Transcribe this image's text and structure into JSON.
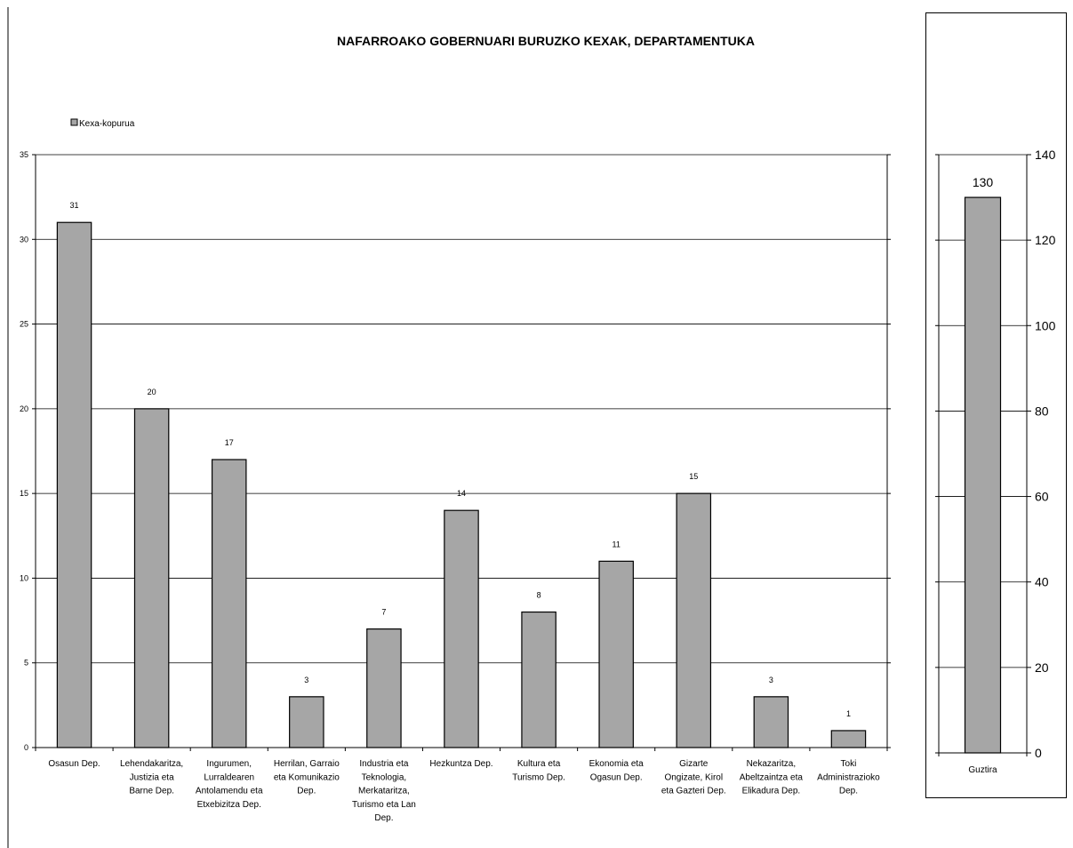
{
  "chart_data": [
    {
      "type": "bar",
      "title": "NAFARROAKO GOBERNUARI BURUZKO KEXAK, DEPARTAMENTUKA",
      "legend": {
        "entries": [
          "Kexa-kopurua"
        ],
        "placement": "top-left"
      },
      "categories": [
        "Osasun Dep.",
        "Lehendakaritza, Justizia eta Barne Dep.",
        "Ingurumen, Lurraldearen Antolamendu eta Etxebizitza Dep.",
        "Herrilan, Garraio eta Komunikazio Dep.",
        "Industria eta Teknologia, Merkataritza, Turismo eta Lan Dep.",
        "Hezkuntza Dep.",
        "Kultura eta Turismo Dep.",
        "Ekonomia eta Ogasun Dep.",
        "Gizarte Ongizate, Kirol eta Gazteri Dep.",
        "Nekazaritza, Abeltzaintza eta Elikadura Dep.",
        "Toki Administrazioko Dep."
      ],
      "category_lines": [
        [
          "Osasun Dep."
        ],
        [
          "Lehendakaritza,",
          "Justizia eta",
          "Barne Dep."
        ],
        [
          "Ingurumen,",
          "Lurraldearen",
          "Antolamendu eta",
          "Etxebizitza Dep."
        ],
        [
          "Herrilan, Garraio",
          "eta Komunikazio",
          "Dep."
        ],
        [
          "Industria eta",
          "Teknologia,",
          "Merkataritza,",
          "Turismo eta Lan",
          "Dep."
        ],
        [
          "Hezkuntza Dep."
        ],
        [
          "Kultura eta",
          "Turismo Dep."
        ],
        [
          "Ekonomia eta",
          "Ogasun Dep."
        ],
        [
          "Gizarte",
          "Ongizate, Kirol",
          "eta Gazteri Dep."
        ],
        [
          "Nekazaritza,",
          "Abeltzaintza eta",
          "Elikadura Dep."
        ],
        [
          "Toki",
          "Administrazioko",
          "Dep."
        ]
      ],
      "series": [
        {
          "name": "Kexa-kopurua",
          "values": [
            31,
            20,
            17,
            3,
            7,
            14,
            8,
            11,
            15,
            3,
            1
          ]
        }
      ],
      "ylim": [
        0,
        35
      ],
      "yticks": [
        0,
        5,
        10,
        15,
        20,
        25,
        30,
        35
      ],
      "grid": true,
      "bar_color": "#a6a6a6"
    },
    {
      "type": "bar",
      "categories": [
        "Guztira"
      ],
      "values": [
        130
      ],
      "ylim": [
        0,
        140
      ],
      "yticks": [
        0,
        20,
        40,
        60,
        80,
        100,
        120,
        140
      ],
      "y_axis_side": "right",
      "grid": true,
      "bar_color": "#a6a6a6"
    }
  ]
}
